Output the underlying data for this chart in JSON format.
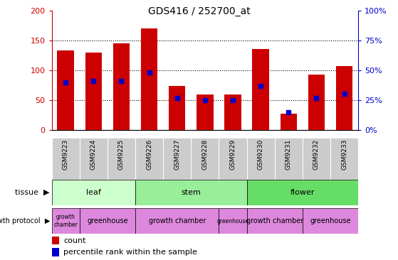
{
  "title": "GDS416 / 252700_at",
  "samples": [
    "GSM9223",
    "GSM9224",
    "GSM9225",
    "GSM9226",
    "GSM9227",
    "GSM9228",
    "GSM9229",
    "GSM9230",
    "GSM9231",
    "GSM9232",
    "GSM9233"
  ],
  "counts": [
    133,
    129,
    145,
    170,
    74,
    59,
    59,
    136,
    27,
    93,
    107
  ],
  "percentiles": [
    40,
    41,
    41,
    48,
    27,
    25,
    25,
    37,
    15,
    27,
    30
  ],
  "ylim_left": [
    0,
    200
  ],
  "ylim_right": [
    0,
    100
  ],
  "yticks_left": [
    0,
    50,
    100,
    150,
    200
  ],
  "yticks_right": [
    0,
    25,
    50,
    75,
    100
  ],
  "bar_color": "#cc0000",
  "dot_color": "#0000cc",
  "tissue_colors": {
    "leaf": "#ccffcc",
    "stem": "#99ee99",
    "flower": "#66dd66"
  },
  "tissue_groups": [
    {
      "label": "leaf",
      "start": 0,
      "end": 2
    },
    {
      "label": "stem",
      "start": 3,
      "end": 6
    },
    {
      "label": "flower",
      "start": 7,
      "end": 10
    }
  ],
  "protocol_color": "#dd88dd",
  "protocol_groups": [
    {
      "label": "growth\nchamber",
      "start": 0,
      "end": 0
    },
    {
      "label": "greenhouse",
      "start": 1,
      "end": 2
    },
    {
      "label": "growth chamber",
      "start": 3,
      "end": 5
    },
    {
      "label": "greenhouse",
      "start": 6,
      "end": 6
    },
    {
      "label": "growth chamber",
      "start": 7,
      "end": 8
    },
    {
      "label": "greenhouse",
      "start": 9,
      "end": 10
    }
  ],
  "left_axis_color": "#cc0000",
  "right_axis_color": "#0000cc",
  "xticklabel_bg": "#cccccc"
}
